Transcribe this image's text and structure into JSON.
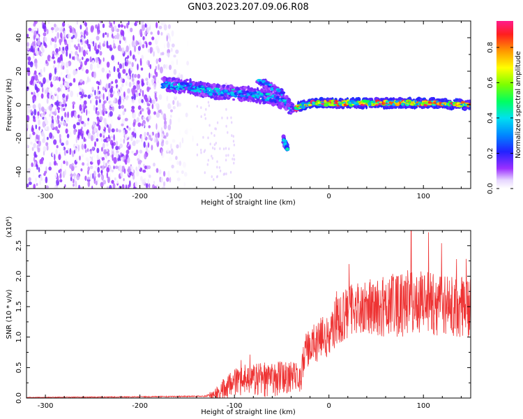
{
  "figure_title": "GN03.2023.207.09.06.R08",
  "chart_data": [
    {
      "type": "heatmap",
      "xlabel": "Height of straight line (km)",
      "ylabel": "Frequency (Hz)",
      "xlim": [
        -320,
        150
      ],
      "ylim": [
        -50,
        50
      ],
      "x_ticks": [
        -300,
        -200,
        -100,
        0,
        100
      ],
      "x_tick_labels": [
        "-300",
        "-200",
        "-100",
        "0",
        "100"
      ],
      "y_ticks": [
        -40,
        -20,
        0,
        20,
        40
      ],
      "y_tick_labels": [
        "-40",
        "-20",
        "0",
        "20",
        "40"
      ],
      "colorbar": {
        "label": "Normalized spectral amplitude",
        "range": [
          0.0,
          0.95
        ],
        "ticks": [
          0.0,
          0.2,
          0.4,
          0.6,
          0.8
        ],
        "tick_labels": [
          "0.0",
          "0.2",
          "0.4",
          "0.6",
          "0.8"
        ],
        "colormap": "rainbow (white-violet-blue-cyan-green-yellow-orange-red-magenta)"
      },
      "features": [
        {
          "name": "noise-field",
          "x_range": [
            -320,
            -140
          ],
          "freq_range": [
            -50,
            50
          ],
          "amplitude_range": [
            0.0,
            0.15
          ]
        },
        {
          "name": "signal-band-descending",
          "points": [
            [
              -175,
              12
            ],
            [
              -150,
              11
            ],
            [
              -125,
              8
            ],
            [
              -100,
              7
            ],
            [
              -80,
              6
            ],
            [
              -60,
              4
            ],
            [
              -45,
              1
            ],
            [
              -38,
              -3
            ]
          ],
          "amplitude_range": [
            0.1,
            0.45
          ]
        },
        {
          "name": "branch-upper",
          "points": [
            [
              -75,
              14
            ],
            [
              -65,
              12
            ],
            [
              -55,
              9
            ],
            [
              -48,
              6
            ]
          ],
          "amplitude_range": [
            0.1,
            0.4
          ]
        },
        {
          "name": "branch-lower",
          "points": [
            [
              -48,
              -21
            ],
            [
              -44,
              -26
            ]
          ],
          "amplitude_range": [
            0.2,
            0.45
          ]
        },
        {
          "name": "signal-band-flat",
          "points": [
            [
              -35,
              -2
            ],
            [
              -20,
              1
            ],
            [
              0,
              1
            ],
            [
              50,
              1
            ],
            [
              100,
              1
            ],
            [
              150,
              0
            ]
          ],
          "amplitude_range": [
            0.3,
            0.95
          ]
        }
      ]
    },
    {
      "type": "line",
      "xlabel": "Height of straight line (km)",
      "ylabel": "SNR (10 * v/v)",
      "y_multiplier_label": "(x10⁴)",
      "xlim": [
        -320,
        150
      ],
      "ylim": [
        0,
        2.75
      ],
      "x_ticks": [
        -300,
        -200,
        -100,
        0,
        100
      ],
      "x_tick_labels": [
        "-300",
        "-200",
        "-100",
        "0",
        "100"
      ],
      "y_ticks": [
        0,
        0.5,
        1.0,
        1.5,
        2.0,
        2.5
      ],
      "y_tick_labels": [
        "0.0",
        "0.5",
        "1.0",
        "1.5",
        "2.0",
        "2.5"
      ],
      "series_color": "#ee3333",
      "envelope": {
        "x": [
          -320,
          -200,
          -130,
          -115,
          -100,
          -80,
          -60,
          -40,
          -30,
          -25,
          -20,
          -10,
          0,
          10,
          25,
          40,
          60,
          80,
          100,
          120,
          150
        ],
        "y": [
          0.01,
          0.02,
          0.03,
          0.1,
          0.25,
          0.3,
          0.3,
          0.35,
          0.3,
          0.75,
          0.85,
          0.95,
          1.1,
          1.3,
          1.45,
          1.5,
          1.5,
          1.55,
          1.55,
          1.5,
          1.5
        ]
      },
      "noise_amplitude": {
        "x": [
          -320,
          -130,
          -110,
          -60,
          -30,
          -25,
          0,
          40,
          80,
          150
        ],
        "y": [
          0.005,
          0.01,
          0.2,
          0.3,
          0.25,
          0.3,
          0.4,
          0.45,
          0.55,
          0.5
        ]
      },
      "max_value": 2.75,
      "max_at_x": 87
    }
  ]
}
